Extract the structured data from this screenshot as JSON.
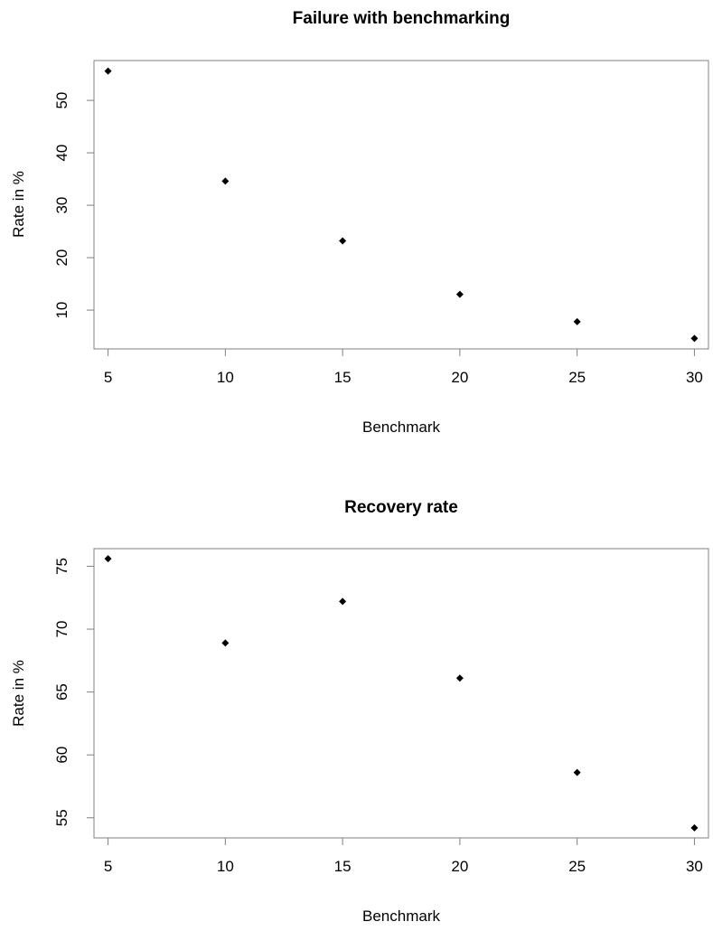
{
  "chart_data": [
    {
      "type": "scatter",
      "title": "Failure with benchmarking",
      "xlabel": "Benchmark",
      "ylabel": "Rate  in %",
      "x": [
        5,
        10,
        15,
        20,
        25,
        30
      ],
      "y": [
        55.6,
        34.6,
        23.2,
        13.0,
        7.8,
        4.6
      ],
      "xlim": [
        4.4,
        30.6
      ],
      "ylim": [
        2.6,
        57.6
      ],
      "xticks": [
        5,
        10,
        15,
        20,
        25,
        30
      ],
      "yticks": [
        10,
        20,
        30,
        40,
        50
      ],
      "marker": "diamond",
      "marker_color": "#000000",
      "grid": false
    },
    {
      "type": "scatter",
      "title": "Recovery rate",
      "xlabel": "Benchmark",
      "ylabel": "Rate  in %",
      "x": [
        5,
        10,
        15,
        20,
        25,
        30
      ],
      "y": [
        75.6,
        68.9,
        72.2,
        66.1,
        58.6,
        54.2
      ],
      "xlim": [
        4.4,
        30.6
      ],
      "ylim": [
        53.4,
        76.4
      ],
      "xticks": [
        5,
        10,
        15,
        20,
        25,
        30
      ],
      "yticks": [
        55,
        60,
        65,
        70,
        75
      ],
      "marker": "diamond",
      "marker_color": "#000000",
      "grid": false
    }
  ]
}
